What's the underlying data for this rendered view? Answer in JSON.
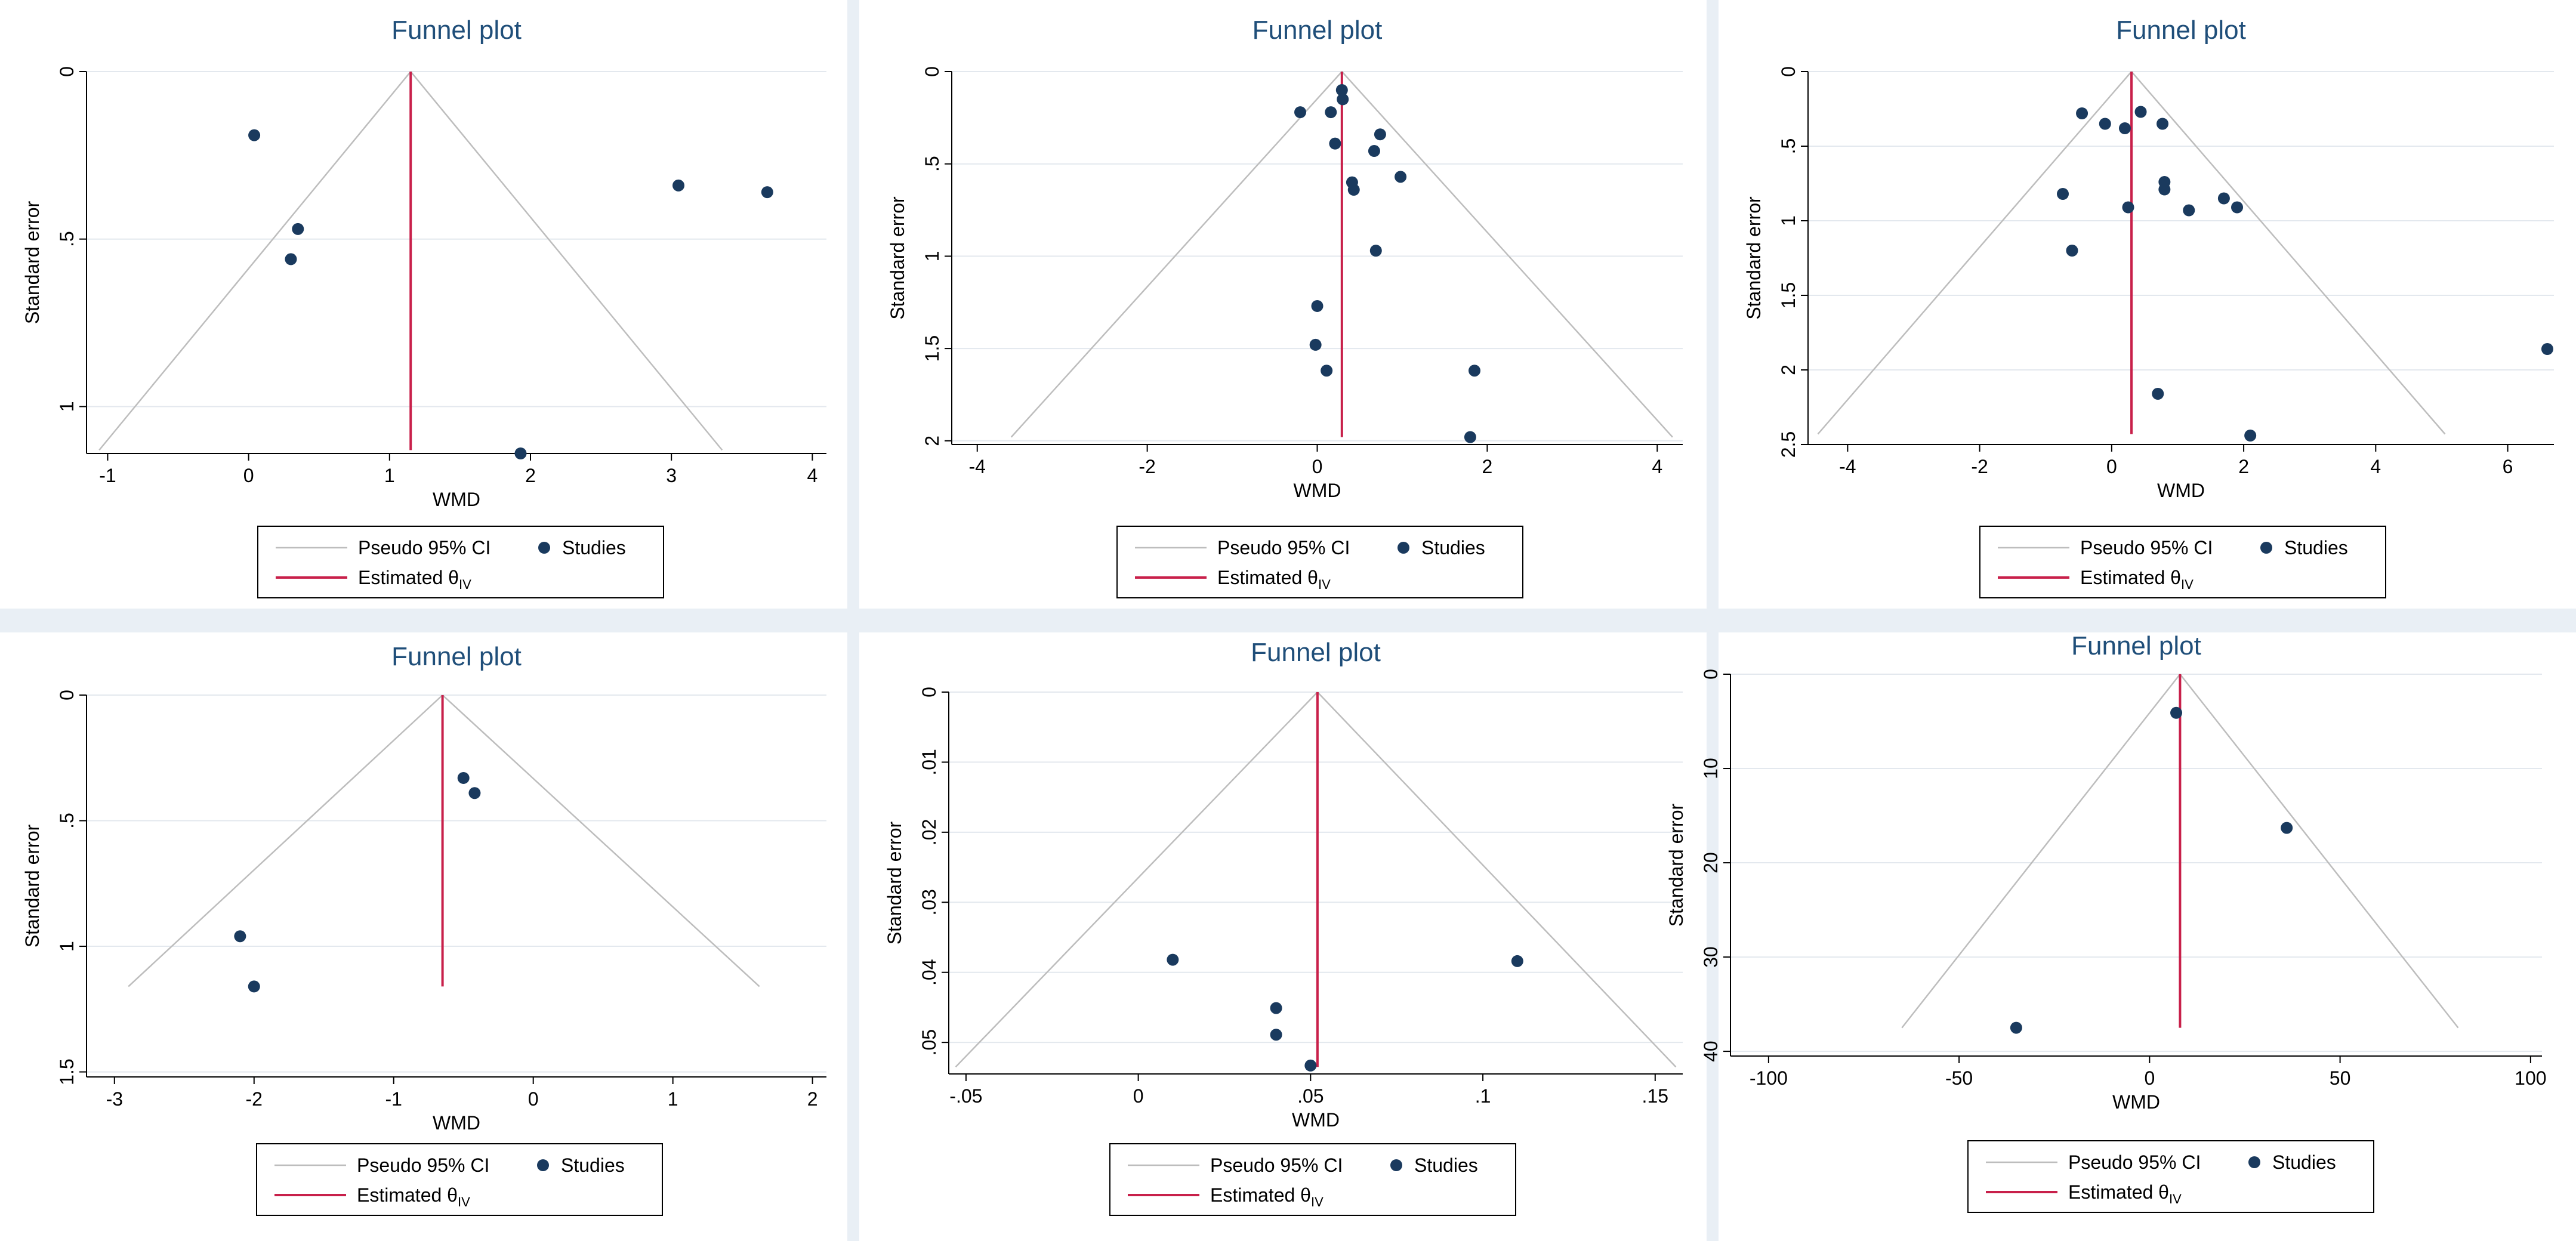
{
  "chart_data": [
    {
      "type": "scatter",
      "title": "Funnel plot",
      "xlabel": "WMD",
      "ylabel": "Standard error",
      "xlim": [
        -1.15,
        4.1
      ],
      "ylim": [
        0,
        1.14
      ],
      "y_reversed": true,
      "xticks": [
        -1,
        0,
        1,
        2,
        3,
        4
      ],
      "xtick_labels": [
        "-1",
        "0",
        "1",
        "2",
        "3",
        "4"
      ],
      "yticks": [
        0,
        0.5,
        1
      ],
      "ytick_labels": [
        "0",
        ".5",
        "1"
      ],
      "estimate": 1.15,
      "funnel_max_se": 1.13,
      "funnel_left_x": -1.06,
      "funnel_right_x": 3.36,
      "points": [
        {
          "x": 0.04,
          "y": 0.19
        },
        {
          "x": 3.05,
          "y": 0.34
        },
        {
          "x": 3.68,
          "y": 0.36
        },
        {
          "x": 0.35,
          "y": 0.47
        },
        {
          "x": 0.3,
          "y": 0.56
        },
        {
          "x": 1.93,
          "y": 1.14
        }
      ],
      "legend": {
        "ci_label": "Pseudo 95% CI",
        "studies_label": "Studies",
        "est_label": "Estimated θ",
        "est_sub": "IV"
      }
    },
    {
      "type": "scatter",
      "title": "Funnel plot",
      "xlabel": "WMD",
      "ylabel": "Standard error",
      "xlim": [
        -4.3,
        4.3
      ],
      "ylim": [
        0,
        2.02
      ],
      "y_reversed": true,
      "xticks": [
        -4,
        -2,
        0,
        2,
        4
      ],
      "xtick_labels": [
        "-4",
        "-2",
        "0",
        "2",
        "4"
      ],
      "yticks": [
        0,
        0.5,
        1,
        1.5,
        2
      ],
      "ytick_labels": [
        "0",
        ".5",
        "1",
        "1.5",
        "2"
      ],
      "estimate": 0.29,
      "funnel_max_se": 1.98,
      "funnel_left_x": -3.6,
      "funnel_right_x": 4.18,
      "points": [
        {
          "x": 0.29,
          "y": 0.1
        },
        {
          "x": 0.3,
          "y": 0.15
        },
        {
          "x": -0.2,
          "y": 0.22
        },
        {
          "x": 0.16,
          "y": 0.22
        },
        {
          "x": 0.74,
          "y": 0.34
        },
        {
          "x": 0.21,
          "y": 0.39
        },
        {
          "x": 0.67,
          "y": 0.43
        },
        {
          "x": 0.41,
          "y": 0.6
        },
        {
          "x": 0.98,
          "y": 0.57
        },
        {
          "x": 0.43,
          "y": 0.64
        },
        {
          "x": 0.69,
          "y": 0.97
        },
        {
          "x": 0.0,
          "y": 1.27
        },
        {
          "x": -0.02,
          "y": 1.48
        },
        {
          "x": 0.11,
          "y": 1.62
        },
        {
          "x": 1.85,
          "y": 1.62
        },
        {
          "x": 1.8,
          "y": 1.98
        }
      ],
      "legend": {
        "ci_label": "Pseudo 95% CI",
        "studies_label": "Studies",
        "est_label": "Estimated θ",
        "est_sub": "IV"
      }
    },
    {
      "type": "scatter",
      "title": "Funnel plot",
      "xlabel": "WMD",
      "ylabel": "Standard error",
      "xlim": [
        -4.6,
        6.7
      ],
      "ylim": [
        0,
        2.5
      ],
      "y_reversed": true,
      "xticks": [
        -4,
        -2,
        0,
        2,
        4,
        6
      ],
      "xtick_labels": [
        "-4",
        "-2",
        "0",
        "2",
        "4",
        "6"
      ],
      "yticks": [
        0,
        0.5,
        1,
        1.5,
        2,
        2.5
      ],
      "ytick_labels": [
        "0",
        ".5",
        "1",
        "1.5",
        "2",
        "2.5"
      ],
      "estimate": 0.3,
      "funnel_max_se": 2.43,
      "funnel_left_x": -4.45,
      "funnel_right_x": 5.05,
      "points": [
        {
          "x": -0.45,
          "y": 0.28
        },
        {
          "x": 0.44,
          "y": 0.27
        },
        {
          "x": -0.1,
          "y": 0.35
        },
        {
          "x": 0.2,
          "y": 0.38
        },
        {
          "x": 0.77,
          "y": 0.35
        },
        {
          "x": 0.8,
          "y": 0.74
        },
        {
          "x": 0.8,
          "y": 0.79
        },
        {
          "x": -0.74,
          "y": 0.82
        },
        {
          "x": 1.7,
          "y": 0.85
        },
        {
          "x": 1.9,
          "y": 0.91
        },
        {
          "x": 0.25,
          "y": 0.91
        },
        {
          "x": 1.17,
          "y": 0.93
        },
        {
          "x": -0.6,
          "y": 1.2
        },
        {
          "x": 6.6,
          "y": 1.86
        },
        {
          "x": 0.7,
          "y": 2.16
        },
        {
          "x": 2.1,
          "y": 2.44
        }
      ],
      "legend": {
        "ci_label": "Pseudo 95% CI",
        "studies_label": "Studies",
        "est_label": "Estimated θ",
        "est_sub": "IV"
      }
    },
    {
      "type": "scatter",
      "title": "Funnel plot",
      "xlabel": "WMD",
      "ylabel": "Standard error",
      "xlim": [
        -3.2,
        2.1
      ],
      "ylim": [
        0,
        1.52
      ],
      "y_reversed": true,
      "xticks": [
        -3,
        -2,
        -1,
        0,
        1,
        2
      ],
      "xtick_labels": [
        "-3",
        "-2",
        "-1",
        "0",
        "1",
        "2"
      ],
      "yticks": [
        0,
        0.5,
        1,
        1.5
      ],
      "ytick_labels": [
        "0",
        ".5",
        "1",
        "1.5"
      ],
      "estimate": -0.65,
      "funnel_max_se": 1.16,
      "funnel_left_x": -2.9,
      "funnel_right_x": 1.62,
      "points": [
        {
          "x": -0.5,
          "y": 0.33
        },
        {
          "x": -0.42,
          "y": 0.39
        },
        {
          "x": -2.1,
          "y": 0.96
        },
        {
          "x": -2.0,
          "y": 1.16
        }
      ],
      "legend": {
        "ci_label": "Pseudo 95% CI",
        "studies_label": "Studies",
        "est_label": "Estimated θ",
        "est_sub": "IV"
      }
    },
    {
      "type": "scatter",
      "title": "Funnel plot",
      "xlabel": "WMD",
      "ylabel": "Standard error",
      "xlim": [
        -0.055,
        0.158
      ],
      "ylim": [
        0,
        0.0545
      ],
      "y_reversed": true,
      "xticks": [
        -0.05,
        0,
        0.05,
        0.1,
        0.15
      ],
      "xtick_labels": [
        "-.05",
        "0",
        ".05",
        ".1",
        ".15"
      ],
      "yticks": [
        0,
        0.01,
        0.02,
        0.03,
        0.04,
        0.05
      ],
      "ytick_labels": [
        "0",
        ".01",
        ".02",
        ".03",
        ".04",
        ".05"
      ],
      "estimate": 0.052,
      "funnel_max_se": 0.0535,
      "funnel_left_x": -0.053,
      "funnel_right_x": 0.156,
      "points": [
        {
          "x": 0.01,
          "y": 0.0382
        },
        {
          "x": 0.11,
          "y": 0.0384
        },
        {
          "x": 0.04,
          "y": 0.0451
        },
        {
          "x": 0.04,
          "y": 0.0489
        },
        {
          "x": 0.05,
          "y": 0.0533
        }
      ],
      "legend": {
        "ci_label": "Pseudo 95% CI",
        "studies_label": "Studies",
        "est_label": "Estimated θ",
        "est_sub": "IV"
      }
    },
    {
      "type": "scatter",
      "title": "Funnel plot",
      "xlabel": "WMD",
      "ylabel": "Standard error",
      "xlim": [
        -110,
        103
      ],
      "ylim": [
        0,
        40.5
      ],
      "y_reversed": true,
      "xticks": [
        -100,
        -50,
        0,
        50,
        100
      ],
      "xtick_labels": [
        "-100",
        "-50",
        "0",
        "50",
        "100"
      ],
      "yticks": [
        0,
        10,
        20,
        30,
        40
      ],
      "ytick_labels": [
        "0",
        "10",
        "20",
        "30",
        "40"
      ],
      "estimate": 8,
      "funnel_max_se": 37.5,
      "funnel_left_x": -65,
      "funnel_right_x": 81,
      "points": [
        {
          "x": 7,
          "y": 4.1
        },
        {
          "x": 36,
          "y": 16.3
        },
        {
          "x": -35,
          "y": 37.5
        }
      ],
      "legend": {
        "ci_label": "Pseudo 95% CI",
        "studies_label": "Studies",
        "est_label": "Estimated θ",
        "est_sub": "IV"
      }
    }
  ],
  "colors": {
    "background": "#e9eff5",
    "panel": "#ffffff",
    "title": "#1f4e79",
    "estimate_line": "#c8204a",
    "funnel": "#bdbdbd",
    "marker": "#1a3a5e",
    "grid": "#e3e8ee"
  }
}
